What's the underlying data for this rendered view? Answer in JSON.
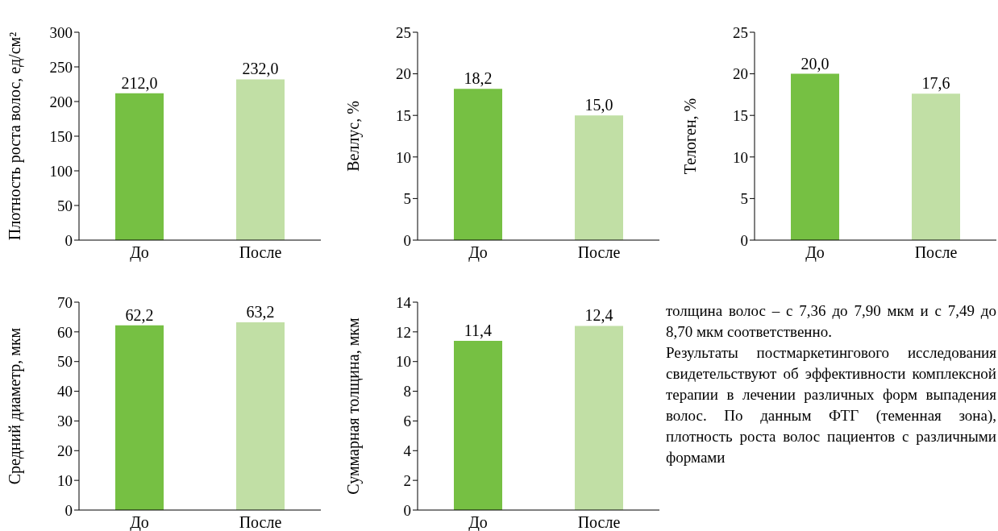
{
  "chart_data": [
    {
      "type": "bar",
      "ylabel": "Плотность роста волос, ед/см²",
      "categories": [
        "До",
        "После"
      ],
      "values": [
        212.0,
        232.0
      ],
      "colors": [
        "#76c043",
        "#c1dfa5"
      ],
      "value_labels": [
        "212,0",
        "232,0"
      ],
      "ylim": [
        0,
        300
      ],
      "yticks": [
        0,
        50,
        100,
        150,
        200,
        250,
        300
      ],
      "grid": false
    },
    {
      "type": "bar",
      "ylabel": "Веллус, %",
      "categories": [
        "До",
        "После"
      ],
      "values": [
        18.2,
        15.0
      ],
      "colors": [
        "#76c043",
        "#c1dfa5"
      ],
      "value_labels": [
        "18,2",
        "15,0"
      ],
      "ylim": [
        0,
        25
      ],
      "yticks": [
        0,
        5,
        10,
        15,
        20,
        25
      ],
      "grid": false
    },
    {
      "type": "bar",
      "ylabel": "Телоген, %",
      "categories": [
        "До",
        "После"
      ],
      "values": [
        20.0,
        17.6
      ],
      "colors": [
        "#76c043",
        "#c1dfa5"
      ],
      "value_labels": [
        "20,0",
        "17,6"
      ],
      "ylim": [
        0,
        25
      ],
      "yticks": [
        0,
        5,
        10,
        15,
        20,
        25
      ],
      "grid": false
    },
    {
      "type": "bar",
      "ylabel": "Средний диаметр, мкм",
      "categories": [
        "До",
        "После"
      ],
      "values": [
        62.2,
        63.2
      ],
      "colors": [
        "#76c043",
        "#c1dfa5"
      ],
      "value_labels": [
        "62,2",
        "63,2"
      ],
      "ylim": [
        0,
        70
      ],
      "yticks": [
        0,
        10,
        20,
        30,
        40,
        50,
        60,
        70
      ],
      "grid": false
    },
    {
      "type": "bar",
      "ylabel": "Суммарная толщина, мкм",
      "categories": [
        "До",
        "После"
      ],
      "values": [
        11.4,
        12.4
      ],
      "colors": [
        "#76c043",
        "#c1dfa5"
      ],
      "value_labels": [
        "11,4",
        "12,4"
      ],
      "ylim": [
        0,
        14
      ],
      "yticks": [
        0,
        2,
        4,
        6,
        8,
        10,
        12,
        14
      ],
      "grid": false
    },
    {
      "type": "other",
      "annotations": [
        "толщина волос – с 7,36 до 7,90 мкм и с 7,49 до 8,70 мкм соответственно.",
        "Результаты постмаркетингового исследования свидетельствуют об эффективности комплексной терапии в лечении различных форм выпадения волос. По данным ФТГ (теменная зона), плотность роста волос пациентов с различными формами"
      ]
    }
  ]
}
